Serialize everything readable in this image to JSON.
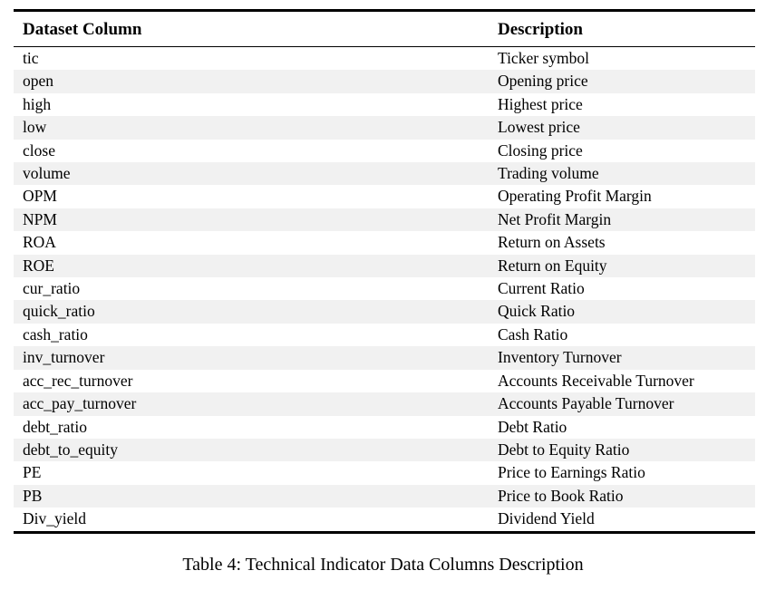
{
  "table": {
    "headers": [
      "Dataset Column",
      "Description"
    ],
    "rows": [
      {
        "column": "tic",
        "description": "Ticker symbol"
      },
      {
        "column": "open",
        "description": "Opening price"
      },
      {
        "column": "high",
        "description": "Highest price"
      },
      {
        "column": "low",
        "description": "Lowest price"
      },
      {
        "column": "close",
        "description": "Closing price"
      },
      {
        "column": "volume",
        "description": "Trading volume"
      },
      {
        "column": "OPM",
        "description": "Operating Profit Margin"
      },
      {
        "column": "NPM",
        "description": "Net Profit Margin"
      },
      {
        "column": "ROA",
        "description": "Return on Assets"
      },
      {
        "column": "ROE",
        "description": "Return on Equity"
      },
      {
        "column": "cur_ratio",
        "description": "Current Ratio"
      },
      {
        "column": "quick_ratio",
        "description": "Quick Ratio"
      },
      {
        "column": "cash_ratio",
        "description": "Cash Ratio"
      },
      {
        "column": "inv_turnover",
        "description": "Inventory Turnover"
      },
      {
        "column": "acc_rec_turnover",
        "description": "Accounts Receivable Turnover"
      },
      {
        "column": "acc_pay_turnover",
        "description": "Accounts Payable Turnover"
      },
      {
        "column": "debt_ratio",
        "description": "Debt Ratio"
      },
      {
        "column": "debt_to_equity",
        "description": "Debt to Equity Ratio"
      },
      {
        "column": "PE",
        "description": "Price to Earnings Ratio"
      },
      {
        "column": "PB",
        "description": "Price to Book Ratio"
      },
      {
        "column": "Div_yield",
        "description": "Dividend Yield"
      }
    ]
  },
  "caption": "Table 4: Technical Indicator Data Columns Description",
  "colors": {
    "background": "#ffffff",
    "text": "#000000",
    "rule": "#000000",
    "stripe": "#f1f1f1"
  }
}
